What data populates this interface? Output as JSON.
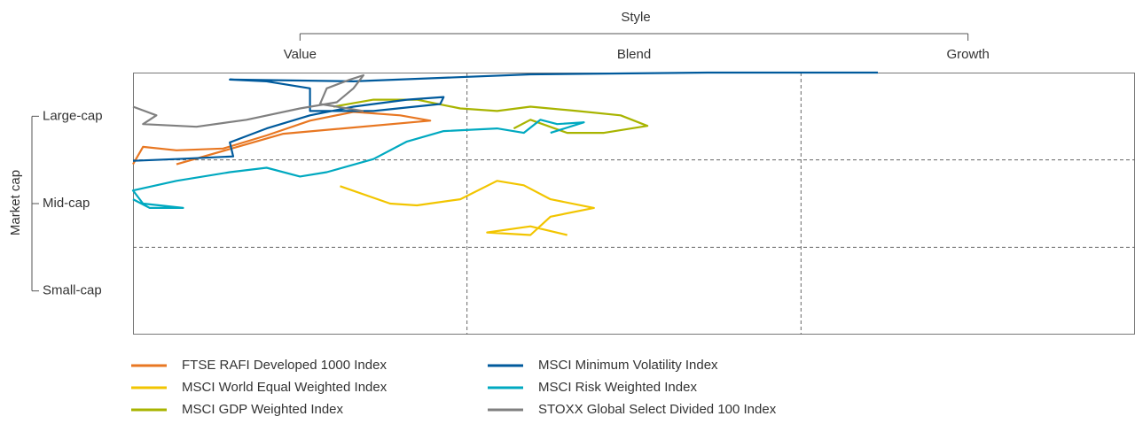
{
  "chart_data": {
    "type": "line",
    "x_title": "Style",
    "y_title": "Market cap",
    "xlim": [
      0,
      3
    ],
    "ylim": [
      0,
      3
    ],
    "xticks": [
      {
        "value": 0.5,
        "label": "Value"
      },
      {
        "value": 1.5,
        "label": "Blend"
      },
      {
        "value": 2.5,
        "label": "Growth"
      }
    ],
    "yticks": [
      {
        "value": 2.5,
        "label": "Large-cap"
      },
      {
        "value": 1.5,
        "label": "Mid-cap"
      },
      {
        "value": 0.5,
        "label": "Small-cap"
      }
    ],
    "x_dividers": [
      1,
      2
    ],
    "y_dividers": [
      1,
      2
    ],
    "series": [
      {
        "name": "FTSE RAFI Developed 1000 Index",
        "color": "#e87722",
        "x": [
          0,
          0.03,
          0.13,
          0.27,
          0.4,
          0.53,
          0.66,
          0.8,
          0.89,
          0.45,
          0.13
        ],
        "values": [
          1.95,
          2.15,
          2.11,
          2.13,
          2.28,
          2.45,
          2.55,
          2.51,
          2.45,
          2.3,
          1.95
        ]
      },
      {
        "name": "MSCI World Equal Weighted Index",
        "color": "#f2c500",
        "x": [
          0.62,
          0.77,
          0.85,
          0.98,
          1.09,
          1.17,
          1.25,
          1.38,
          1.25,
          1.19,
          1.06,
          1.19,
          1.3
        ],
        "values": [
          1.7,
          1.5,
          1.48,
          1.55,
          1.76,
          1.71,
          1.55,
          1.45,
          1.35,
          1.14,
          1.17,
          1.24,
          1.14
        ]
      },
      {
        "name": "MSCI GDP Weighted Index",
        "color": "#a8b400",
        "x": [
          0.6,
          0.72,
          0.85,
          0.98,
          1.09,
          1.19,
          1.33,
          1.46,
          1.54,
          1.41,
          1.3,
          1.19,
          1.14
        ],
        "values": [
          2.61,
          2.69,
          2.69,
          2.59,
          2.56,
          2.61,
          2.56,
          2.51,
          2.39,
          2.31,
          2.31,
          2.46,
          2.36
        ]
      },
      {
        "name": "MSCI Minimum Volatility Index",
        "color": "#005a9c",
        "x": [
          0,
          0.13,
          0.3,
          0.29,
          0.4,
          0.53,
          0.66,
          0.82,
          0.93,
          0.92,
          0.72,
          0.53,
          0.53,
          0.4,
          0.29,
          0.66,
          1.19,
          1.72,
          2.23
        ],
        "values": [
          1.99,
          2.01,
          2.04,
          2.2,
          2.36,
          2.51,
          2.61,
          2.69,
          2.72,
          2.64,
          2.56,
          2.56,
          2.82,
          2.9,
          2.92,
          2.9,
          2.98,
          3.0,
          3.0
        ]
      },
      {
        "name": "MSCI Risk Weighted Index",
        "color": "#00a9c0",
        "x": [
          0,
          0.05,
          0.15,
          0.03,
          0,
          0.13,
          0.29,
          0.4,
          0.5,
          0.58,
          0.72,
          0.82,
          0.93,
          1.09,
          1.17,
          1.22,
          1.27,
          1.35,
          1.25
        ],
        "values": [
          1.55,
          1.45,
          1.45,
          1.5,
          1.65,
          1.76,
          1.86,
          1.91,
          1.81,
          1.86,
          2.01,
          2.21,
          2.33,
          2.36,
          2.31,
          2.46,
          2.41,
          2.43,
          2.31
        ]
      },
      {
        "name": "STOXX Global Select Divided 100 Index",
        "color": "#808080",
        "x": [
          0,
          0.07,
          0.03,
          0.19,
          0.34,
          0.5,
          0.61,
          0.66,
          0.69,
          0.65,
          0.58,
          0.56,
          0.69
        ],
        "values": [
          2.61,
          2.51,
          2.41,
          2.38,
          2.46,
          2.59,
          2.66,
          2.82,
          2.97,
          2.92,
          2.82,
          2.64,
          2.56
        ]
      }
    ]
  }
}
